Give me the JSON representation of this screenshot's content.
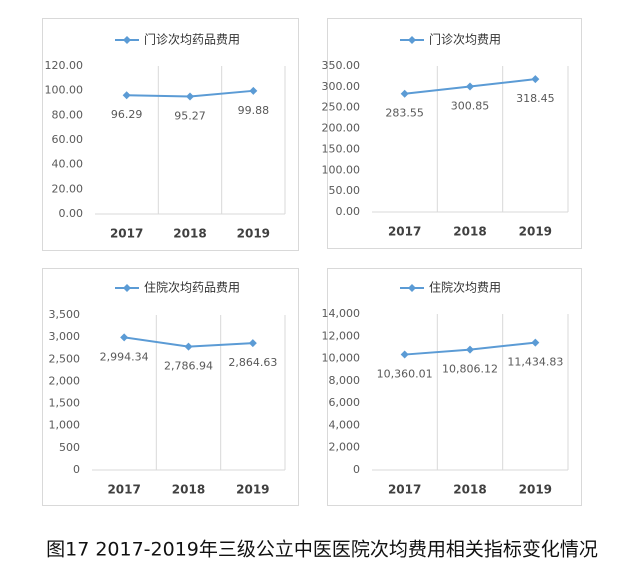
{
  "caption": "图17 2017-2019年三级公立中医医院次均费用相关指标变化情况",
  "chart_data": [
    {
      "type": "line",
      "categories": [
        "2017",
        "2018",
        "2019"
      ],
      "series": [
        {
          "name": "门诊次均药品费用",
          "color": "#5b9bd5",
          "values": [
            96.29,
            95.27,
            99.88
          ]
        }
      ],
      "ylim": [
        0,
        120
      ],
      "yticks": [
        {
          "value": 0,
          "label": "0.00"
        },
        {
          "value": 20,
          "label": "20.00"
        },
        {
          "value": 40,
          "label": "40.00"
        },
        {
          "value": 60,
          "label": "60.00"
        },
        {
          "value": 80,
          "label": "80.00"
        },
        {
          "value": 100,
          "label": "100.00"
        },
        {
          "value": 120,
          "label": "120.00"
        }
      ]
    },
    {
      "type": "line",
      "categories": [
        "2017",
        "2018",
        "2019"
      ],
      "series": [
        {
          "name": "门诊次均费用",
          "color": "#5b9bd5",
          "values": [
            283.55,
            300.85,
            318.45
          ]
        }
      ],
      "ylim": [
        0,
        350
      ],
      "yticks": [
        {
          "value": 0,
          "label": "0.00"
        },
        {
          "value": 50,
          "label": "50.00"
        },
        {
          "value": 100,
          "label": "100.00"
        },
        {
          "value": 150,
          "label": "150.00"
        },
        {
          "value": 200,
          "label": "200.00"
        },
        {
          "value": 250,
          "label": "250.00"
        },
        {
          "value": 300,
          "label": "300.00"
        },
        {
          "value": 350,
          "label": "350.00"
        }
      ]
    },
    {
      "type": "line",
      "categories": [
        "2017",
        "2018",
        "2019"
      ],
      "series": [
        {
          "name": "住院次均药品费用",
          "color": "#5b9bd5",
          "values": [
            2994.34,
            2786.94,
            2864.63
          ],
          "value_labels": [
            "2,994.34",
            "2,786.94",
            "2,864.63"
          ]
        }
      ],
      "ylim": [
        0,
        3500
      ],
      "yticks": [
        0,
        500,
        {
          "value": 1000,
          "label": "1,000"
        },
        {
          "value": 1500,
          "label": "1,500"
        },
        {
          "value": 2000,
          "label": "2,000"
        },
        {
          "value": 2500,
          "label": "2,500"
        },
        {
          "value": 3000,
          "label": "3,000"
        },
        {
          "value": 3500,
          "label": "3,500"
        }
      ]
    },
    {
      "type": "line",
      "categories": [
        "2017",
        "2018",
        "2019"
      ],
      "series": [
        {
          "name": "住院次均费用",
          "color": "#5b9bd5",
          "values": [
            10360.01,
            10806.12,
            11434.83
          ],
          "value_labels": [
            "10,360.01",
            "10,806.12",
            "11,434.83"
          ]
        }
      ],
      "ylim": [
        0,
        14000
      ],
      "yticks": [
        0,
        {
          "value": 2000,
          "label": "2,000"
        },
        {
          "value": 4000,
          "label": "4,000"
        },
        {
          "value": 6000,
          "label": "6,000"
        },
        {
          "value": 8000,
          "label": "8,000"
        },
        {
          "value": 10000,
          "label": "10,000"
        },
        {
          "value": 12000,
          "label": "12,000"
        },
        {
          "value": 14000,
          "label": "14,000"
        }
      ]
    }
  ]
}
